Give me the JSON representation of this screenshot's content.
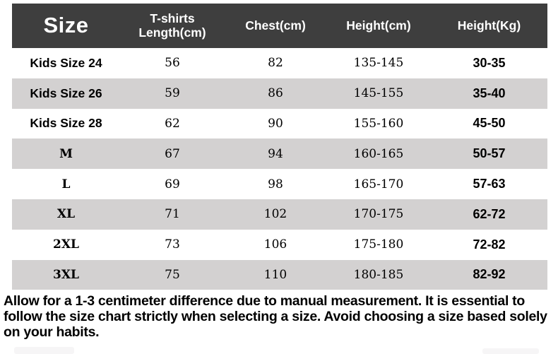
{
  "table": {
    "headers": {
      "size": "Size",
      "length_line1": "T-shirts",
      "length_line2": "Length(cm)",
      "chest": "Chest(cm)",
      "height": "Height(cm)",
      "weight": "Height(Kg)"
    },
    "rows": [
      {
        "size": "Kids Size 24",
        "length": "56",
        "chest": "82",
        "height": "135-145",
        "weight": "30-35"
      },
      {
        "size": "Kids Size 26",
        "length": "59",
        "chest": "86",
        "height": "145-155",
        "weight": "35-40"
      },
      {
        "size": "Kids Size 28",
        "length": "62",
        "chest": "90",
        "height": "155-160",
        "weight": "45-50"
      },
      {
        "size": "M",
        "length": "67",
        "chest": "94",
        "height": "160-165",
        "weight": "50-57"
      },
      {
        "size": "L",
        "length": "69",
        "chest": "98",
        "height": "165-170",
        "weight": "57-63"
      },
      {
        "size": "XL",
        "length": "71",
        "chest": "102",
        "height": "170-175",
        "weight": "62-72"
      },
      {
        "size": "2XL",
        "length": "73",
        "chest": "106",
        "height": "175-180",
        "weight": "72-82"
      },
      {
        "size": "3XL",
        "length": "75",
        "chest": "110",
        "height": "180-185",
        "weight": "82-92"
      }
    ]
  },
  "footer": {
    "note": "Allow for a 1-3 centimeter difference due to manual measurement. It is essential to follow the size chart strictly when selecting a size. Avoid choosing a size based solely on your habits."
  },
  "colors": {
    "header_bg": "#3e3e3e",
    "header_text": "#ffffff",
    "row_bg": "#ffffff",
    "row_alt_bg": "#d3d1d1",
    "text": "#000000"
  }
}
